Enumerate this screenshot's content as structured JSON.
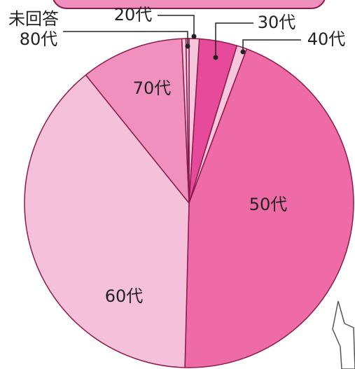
{
  "chart_data": {
    "type": "pie",
    "categories": [
      "20代",
      "30代",
      "40代",
      "50代",
      "60代",
      "70代",
      "80代",
      "未回答"
    ],
    "values": [
      1,
      3.7,
      1,
      44.7,
      38.8,
      10.1,
      0.4,
      0.3
    ],
    "colors": [
      "#f6c6dc",
      "#e74a9a",
      "#f6c6dc",
      "#ef6ba7",
      "#f5c0d9",
      "#f090be",
      "#f6c6dc",
      "#f6c6dc"
    ]
  }
}
